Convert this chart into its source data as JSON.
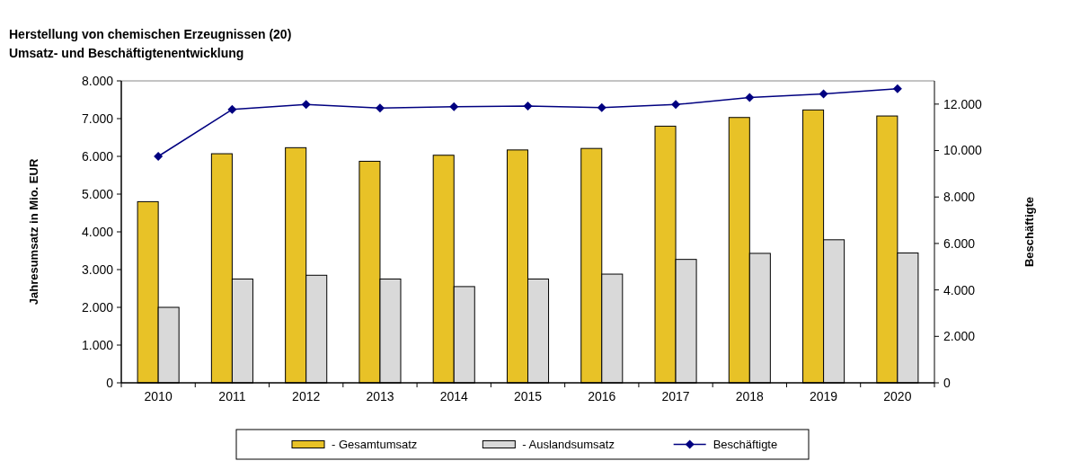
{
  "chart_data": {
    "type": "bar",
    "title": "Herstellung von chemischen Erzeugnissen  (20)",
    "subtitle": "Umsatz- und Beschäftigtenentwicklung",
    "ylabel": "Jahresumsatz in Mio. EUR",
    "y2label": "Beschäftigte",
    "categories": [
      "2010",
      "2011",
      "2012",
      "2013",
      "2014",
      "2015",
      "2016",
      "2017",
      "2018",
      "2019",
      "2020"
    ],
    "series": [
      {
        "name": "- Gesamtumsatz",
        "color": "#e8c227",
        "values": [
          4800,
          6070,
          6230,
          5870,
          6030,
          6170,
          6210,
          6800,
          7030,
          7230,
          7070
        ]
      },
      {
        "name": "- Auslandsumsatz",
        "color": "#d9d9d9",
        "values": [
          2000,
          2750,
          2850,
          2750,
          2550,
          2750,
          2880,
          3270,
          3430,
          3790,
          3440
        ]
      },
      {
        "name": "Beschäftigte",
        "type": "line",
        "axis": "y2",
        "color": "#000080",
        "marker": "diamond",
        "values": [
          9750,
          11770,
          11980,
          11830,
          11890,
          11920,
          11850,
          11980,
          12280,
          12440,
          12660
        ]
      }
    ],
    "ylim": [
      0,
      8000
    ],
    "yticks": [
      {
        "value": 0,
        "label": "0"
      },
      {
        "value": 1000,
        "label": "1.000"
      },
      {
        "value": 2000,
        "label": "2.000"
      },
      {
        "value": 3000,
        "label": "3.000"
      },
      {
        "value": 4000,
        "label": "4.000"
      },
      {
        "value": 5000,
        "label": "5.000"
      },
      {
        "value": 6000,
        "label": "6.000"
      },
      {
        "value": 7000,
        "label": "7.000"
      },
      {
        "value": 8000,
        "label": "8.000"
      }
    ],
    "y2lim": [
      0,
      13000
    ],
    "y2ticks": [
      {
        "value": 0,
        "label": "0"
      },
      {
        "value": 2000,
        "label": "2.000"
      },
      {
        "value": 4000,
        "label": "4.000"
      },
      {
        "value": 6000,
        "label": "6.000"
      },
      {
        "value": 8000,
        "label": "8.000"
      },
      {
        "value": 10000,
        "label": "10.000"
      },
      {
        "value": 12000,
        "label": "12.000"
      }
    ],
    "legend": "bottom"
  }
}
